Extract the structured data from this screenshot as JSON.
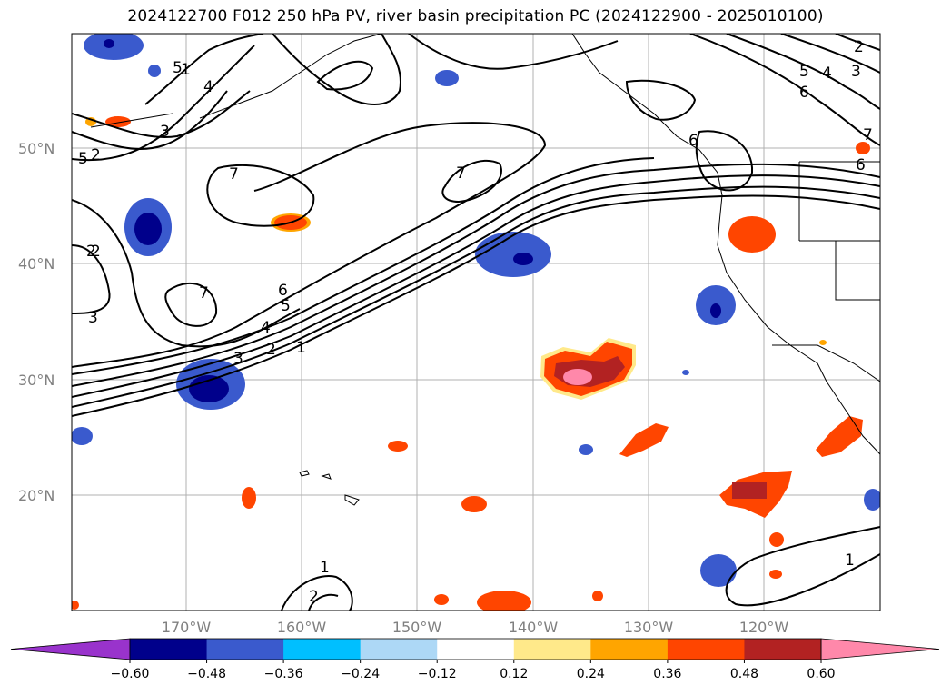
{
  "title": "2024122700 F012 250 hPa PV, river basin precipitation PC (2024122900 - 2025010100)",
  "lat_labels": [
    "50°N",
    "40°N",
    "30°N",
    "20°N"
  ],
  "lon_labels": [
    "170°W",
    "160°W",
    "150°W",
    "140°W",
    "130°W",
    "120°W"
  ],
  "colorbar": {
    "ticks": [
      "−0.60",
      "−0.48",
      "−0.36",
      "−0.24",
      "−0.12",
      "0.12",
      "0.24",
      "0.36",
      "0.48",
      "0.60"
    ],
    "colors": [
      "#9933cc",
      "#00008b",
      "#3a5acd",
      "#00bfff",
      "#add8f6",
      "#ffffff",
      "#ffe98a",
      "#ffa500",
      "#ff4500",
      "#b22222",
      "#ff88aa"
    ]
  },
  "pv_contour_labels": [
    "1",
    "2",
    "3",
    "4",
    "5",
    "6",
    "7",
    "7",
    "7",
    "6",
    "5",
    "4",
    "3",
    "2",
    "1",
    "1",
    "2",
    "2",
    "3",
    "4",
    "5",
    "6",
    "7",
    "3",
    "5",
    "2",
    "6",
    "1",
    "2"
  ]
}
